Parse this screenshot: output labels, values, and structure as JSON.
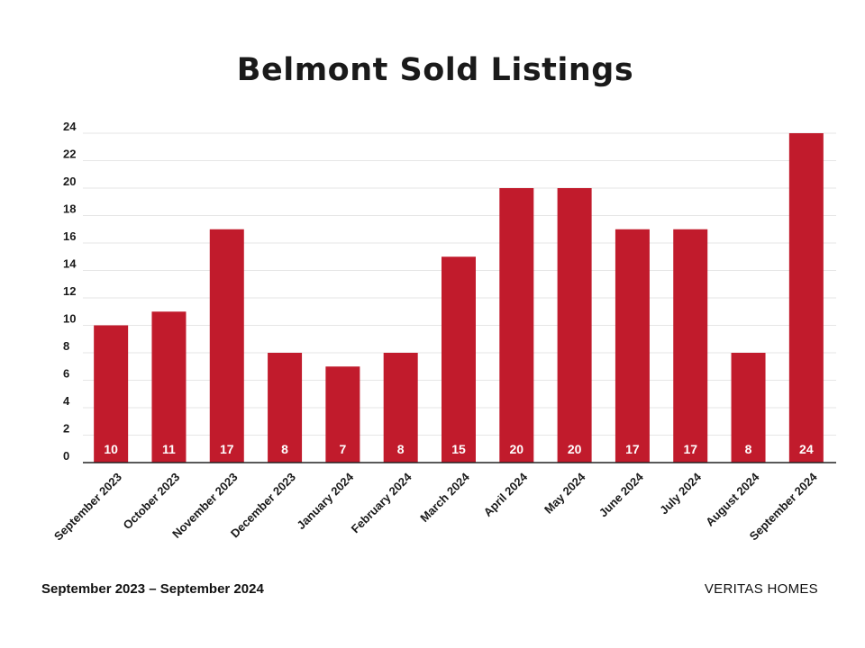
{
  "chart_data": {
    "type": "bar",
    "title": "Belmont Sold Listings",
    "categories": [
      "September 2023",
      "October 2023",
      "November 2023",
      "December 2023",
      "January 2024",
      "February 2024",
      "March 2024",
      "April 2024",
      "May 2024",
      "June 2024",
      "July 2024",
      "August 2024",
      "September 2024"
    ],
    "values": [
      10,
      11,
      17,
      8,
      7,
      8,
      15,
      20,
      20,
      17,
      17,
      8,
      24
    ],
    "ylim": [
      0,
      24
    ],
    "yticks": [
      0,
      2,
      4,
      6,
      8,
      10,
      12,
      14,
      16,
      18,
      20,
      22,
      24
    ],
    "xlabel": "",
    "ylabel": "",
    "grid": true,
    "data_labels": "inside-bottom",
    "bar_color": "#c11b2c"
  },
  "footer": {
    "date_range": "September 2023 – September 2024",
    "brand": "VERITAS HOMES"
  }
}
